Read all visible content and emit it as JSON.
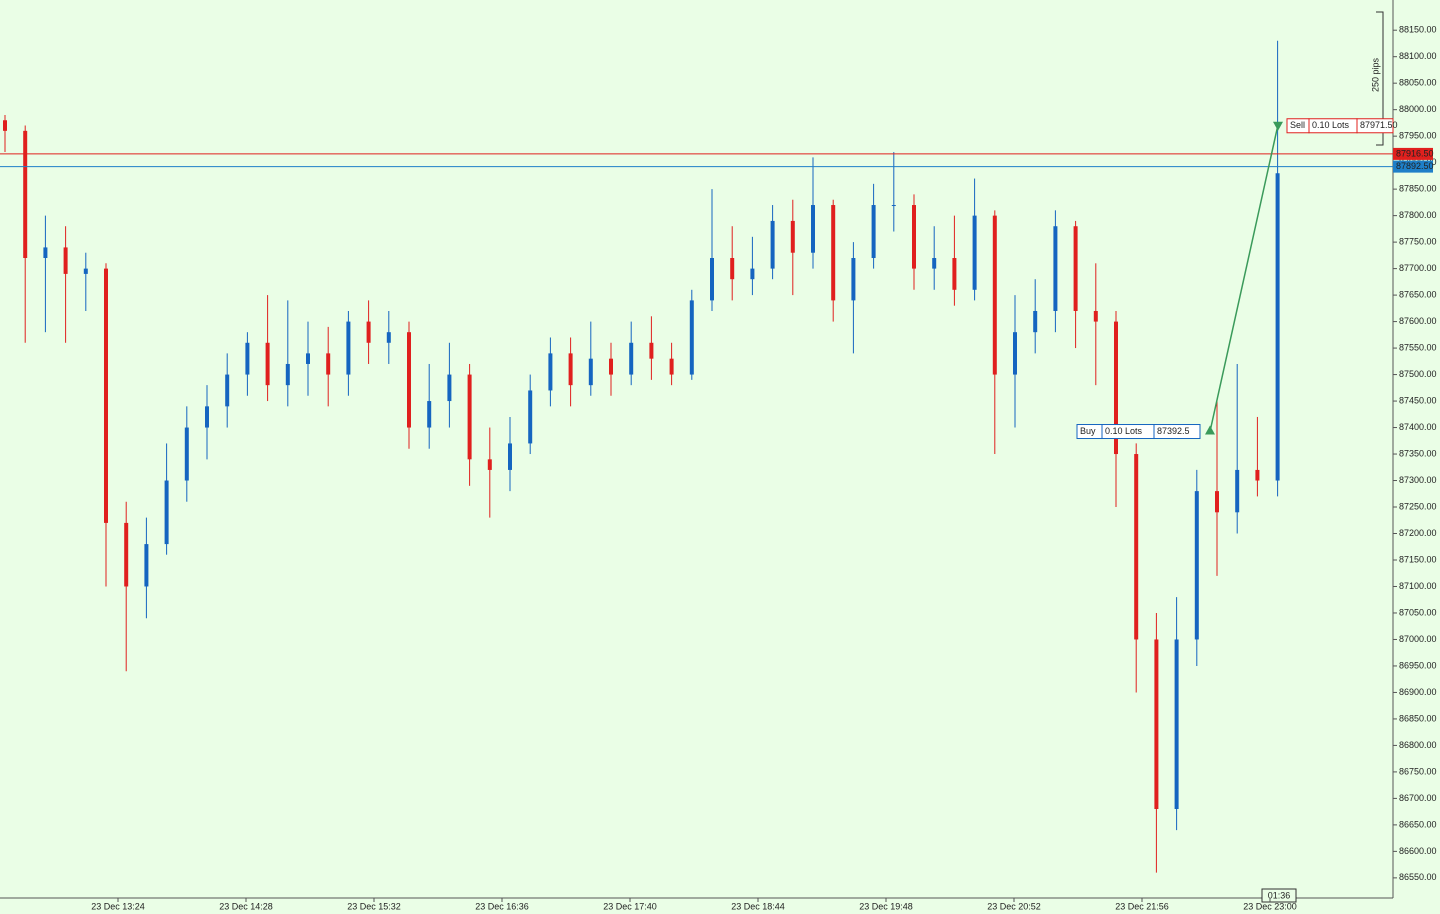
{
  "chart_data": {
    "type": "candlestick",
    "up_color": "#1565c0",
    "down_color": "#e0201e",
    "ylim": [
      86512,
      88207
    ],
    "yticks": [
      {
        "value": 86550,
        "label": "86550.00"
      },
      {
        "value": 86600,
        "label": "86600.00"
      },
      {
        "value": 86650,
        "label": "86650.00"
      },
      {
        "value": 86700,
        "label": "86700.00"
      },
      {
        "value": 86750,
        "label": "86750.00"
      },
      {
        "value": 86800,
        "label": "86800.00"
      },
      {
        "value": 86850,
        "label": "86850.00"
      },
      {
        "value": 86900,
        "label": "86900.00"
      },
      {
        "value": 86950,
        "label": "86950.00"
      },
      {
        "value": 87000,
        "label": "87000.00"
      },
      {
        "value": 87050,
        "label": "87050.00"
      },
      {
        "value": 87100,
        "label": "87100.00"
      },
      {
        "value": 87150,
        "label": "87150.00"
      },
      {
        "value": 87200,
        "label": "87200.00"
      },
      {
        "value": 87250,
        "label": "87250.00"
      },
      {
        "value": 87300,
        "label": "87300.00"
      },
      {
        "value": 87350,
        "label": "87350.00"
      },
      {
        "value": 87400,
        "label": "87400.00"
      },
      {
        "value": 87450,
        "label": "87450.00"
      },
      {
        "value": 87500,
        "label": "87500.00"
      },
      {
        "value": 87550,
        "label": "87550.00"
      },
      {
        "value": 87600,
        "label": "87600.00"
      },
      {
        "value": 87650,
        "label": "87650.00"
      },
      {
        "value": 87700,
        "label": "87700.00"
      },
      {
        "value": 87750,
        "label": "87750.00"
      },
      {
        "value": 87800,
        "label": "87800.00"
      },
      {
        "value": 87850,
        "label": "87850.00"
      },
      {
        "value": 87900,
        "label": "87900.00"
      },
      {
        "value": 87950,
        "label": "87950.00"
      },
      {
        "value": 88000,
        "label": "88000.00"
      },
      {
        "value": 88050,
        "label": "88050.00"
      },
      {
        "value": 88100,
        "label": "88100.00"
      },
      {
        "value": 88150,
        "label": "88150.00"
      }
    ],
    "xticks": [
      "23 Dec 13:24",
      "23 Dec 14:28",
      "23 Dec 15:32",
      "23 Dec 16:36",
      "23 Dec 17:40",
      "23 Dec 18:44",
      "23 Dec 19:48",
      "23 Dec 20:52",
      "23 Dec 21:56",
      "23 Dec 23:00"
    ],
    "open": [
      87980,
      87960,
      87720,
      87740,
      87690,
      87700,
      87220,
      87100,
      87180,
      87300,
      87400,
      87440,
      87500,
      87560,
      87480,
      87520,
      87540,
      87500,
      87600,
      87560,
      87580,
      87400,
      87450,
      87500,
      87340,
      87320,
      87370,
      87470,
      87540,
      87480,
      87530,
      87500,
      87560,
      87530,
      87500,
      87640,
      87720,
      87680,
      87700,
      87790,
      87730,
      87820,
      87640,
      87720,
      87820,
      87820,
      87700,
      87720,
      87660,
      87800,
      87500,
      87580,
      87620,
      87780,
      87620,
      87600,
      87350,
      87000,
      86680,
      87000,
      87280,
      87240,
      87320,
      87300
    ],
    "high": [
      87990,
      87970,
      87800,
      87780,
      87730,
      87710,
      87260,
      87230,
      87370,
      87440,
      87480,
      87540,
      87580,
      87650,
      87640,
      87600,
      87590,
      87620,
      87640,
      87620,
      87600,
      87520,
      87560,
      87520,
      87400,
      87420,
      87500,
      87570,
      87570,
      87600,
      87560,
      87600,
      87610,
      87560,
      87660,
      87850,
      87780,
      87760,
      87820,
      87830,
      87910,
      87830,
      87750,
      87860,
      87920,
      87840,
      87780,
      87800,
      87870,
      87810,
      87650,
      87680,
      87810,
      87790,
      87710,
      87620,
      87370,
      87050,
      87080,
      87320,
      87450,
      87520,
      87420,
      88130
    ],
    "low": [
      87920,
      87560,
      87580,
      87560,
      87620,
      87100,
      86940,
      87040,
      87160,
      87260,
      87340,
      87400,
      87460,
      87450,
      87440,
      87460,
      87440,
      87460,
      87520,
      87520,
      87360,
      87360,
      87400,
      87290,
      87230,
      87280,
      87350,
      87440,
      87440,
      87460,
      87460,
      87480,
      87490,
      87480,
      87490,
      87620,
      87640,
      87650,
      87680,
      87650,
      87700,
      87600,
      87540,
      87700,
      87770,
      87660,
      87660,
      87630,
      87640,
      87350,
      87400,
      87540,
      87580,
      87550,
      87480,
      87250,
      86900,
      86560,
      86640,
      86950,
      87120,
      87200,
      87270,
      87270
    ],
    "close": [
      87960,
      87720,
      87740,
      87690,
      87700,
      87220,
      87100,
      87180,
      87300,
      87400,
      87440,
      87500,
      87560,
      87480,
      87520,
      87540,
      87500,
      87600,
      87560,
      87580,
      87400,
      87450,
      87500,
      87340,
      87320,
      87370,
      87470,
      87540,
      87480,
      87530,
      87500,
      87560,
      87530,
      87500,
      87640,
      87720,
      87680,
      87700,
      87790,
      87730,
      87820,
      87640,
      87720,
      87820,
      87820,
      87700,
      87720,
      87660,
      87800,
      87500,
      87580,
      87620,
      87780,
      87620,
      87600,
      87350,
      87000,
      86680,
      87000,
      87280,
      87240,
      87320,
      87300,
      87880
    ],
    "lines": [
      {
        "value": 87916.5,
        "label": "87916.50",
        "color": "#e0201e"
      },
      {
        "value": 87892.5,
        "label": "87892.50",
        "color": "#1e7fc8"
      }
    ],
    "buy": {
      "side": "Buy",
      "lots": "0.10 Lots",
      "price": 87392.5
    },
    "sell": {
      "side": "Sell",
      "lots": "0.10 Lots",
      "price": 87971.5,
      "price_label": "87971.50"
    },
    "ruler_label": "250 pips",
    "timer": "01:36"
  }
}
